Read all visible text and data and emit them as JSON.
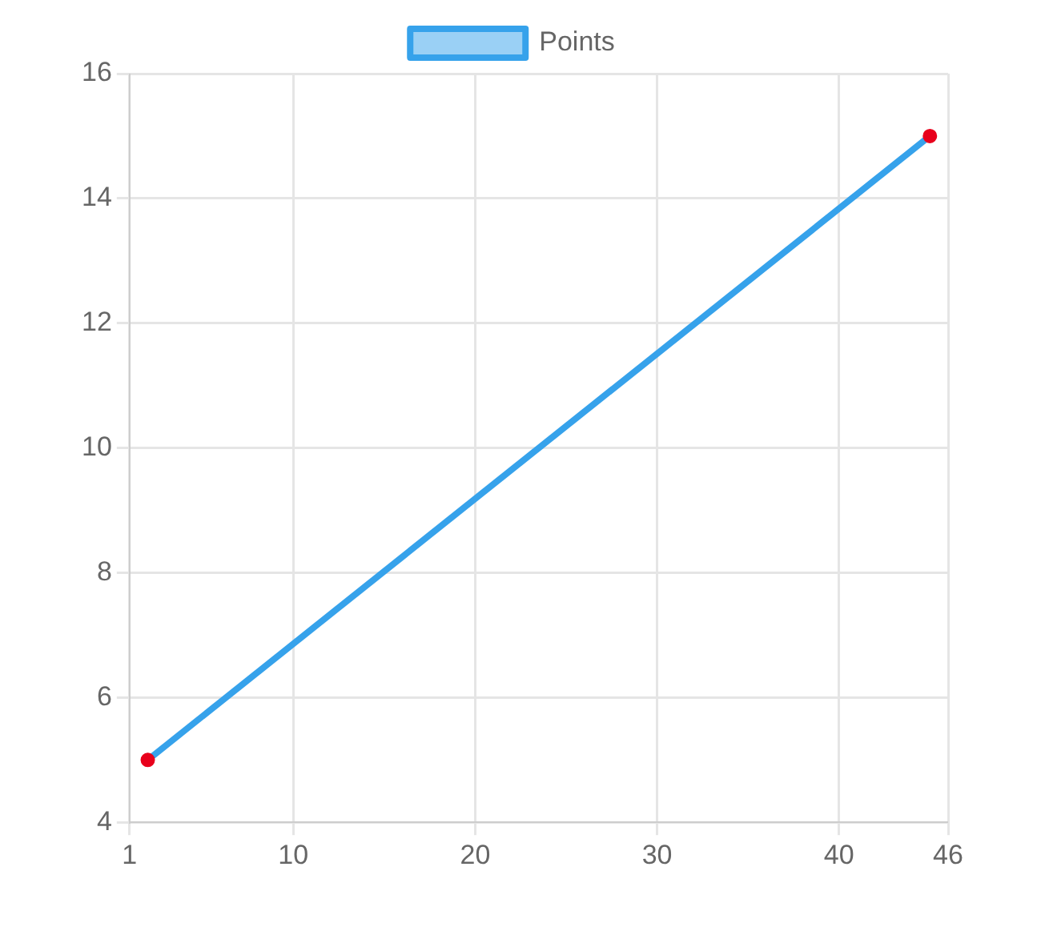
{
  "chart_data": {
    "type": "line",
    "x": [
      2,
      45
    ],
    "series": [
      {
        "name": "Points",
        "color": "#36a2eb",
        "colors": [
          "#e8001c",
          "#e8001c"
        ],
        "values": [
          5,
          15
        ]
      }
    ],
    "xlim": [
      1,
      46
    ],
    "xticks": [
      1,
      10,
      20,
      30,
      40,
      46
    ],
    "ylim": [
      4,
      16
    ],
    "yticks": [
      4,
      6,
      8,
      10,
      12,
      14,
      16
    ],
    "grid": true,
    "legend": "top",
    "marker": "circle",
    "line_style": "solid"
  }
}
